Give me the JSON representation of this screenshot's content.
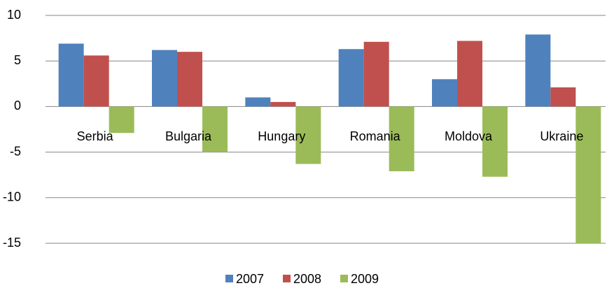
{
  "chart_data": {
    "type": "bar",
    "categories": [
      "Serbia",
      "Bulgaria",
      "Hungary",
      "Romania",
      "Moldova",
      "Ukraine"
    ],
    "series": [
      {
        "name": "2007",
        "color": "#4f81bd",
        "values": [
          6.9,
          6.2,
          1.0,
          6.3,
          3.0,
          7.9
        ]
      },
      {
        "name": "2008",
        "color": "#c0504d",
        "values": [
          5.6,
          6.0,
          0.5,
          7.1,
          7.2,
          2.1
        ]
      },
      {
        "name": "2009",
        "color": "#9bbb59",
        "values": [
          -2.9,
          -5.0,
          -6.3,
          -7.1,
          -7.7,
          -15.0
        ]
      }
    ],
    "ylim": [
      -15,
      10
    ],
    "yticks": [
      -15,
      -10,
      -5,
      0,
      5,
      10
    ],
    "grid": true,
    "legend": "bottom"
  }
}
